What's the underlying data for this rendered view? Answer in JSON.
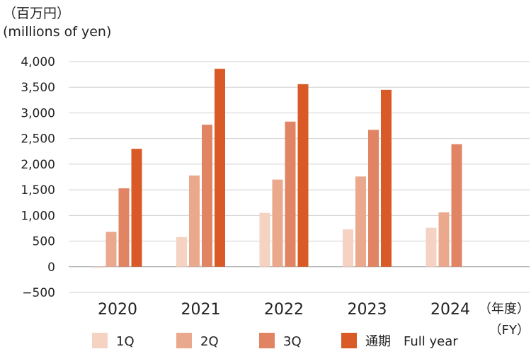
{
  "unit_label_jp": "（百万円）",
  "unit_label_en": "(millions of yen)",
  "x_unit_jp": "（年度）",
  "x_unit_en": "（FY）",
  "colors": {
    "q1": "#f6d2c2",
    "q2": "#eaa98d",
    "q3": "#e18464",
    "full": "#d95a26",
    "grid": "#d0d0d0",
    "axis": "#9a9a9a"
  },
  "chart_data": {
    "type": "bar",
    "categories": [
      "2020",
      "2021",
      "2022",
      "2023",
      "2024"
    ],
    "y_ticks": [
      "4,000",
      "3,500",
      "3,000",
      "2,500",
      "2,000",
      "1,500",
      "1,000",
      "500",
      "0",
      "−500"
    ],
    "ylim": [
      -500,
      4000
    ],
    "grid": true,
    "legend_position": "bottom",
    "series": [
      {
        "name": "1Q",
        "color_key": "q1",
        "values": [
          -20,
          580,
          1050,
          730,
          760
        ]
      },
      {
        "name": "2Q",
        "color_key": "q2",
        "values": [
          680,
          1780,
          1700,
          1760,
          1060
        ]
      },
      {
        "name": "3Q",
        "color_key": "q3",
        "values": [
          1530,
          2770,
          2830,
          2670,
          2390
        ]
      },
      {
        "name": "通期　Full year",
        "color_key": "full",
        "values": [
          2300,
          3860,
          3560,
          3450,
          null
        ]
      }
    ]
  }
}
